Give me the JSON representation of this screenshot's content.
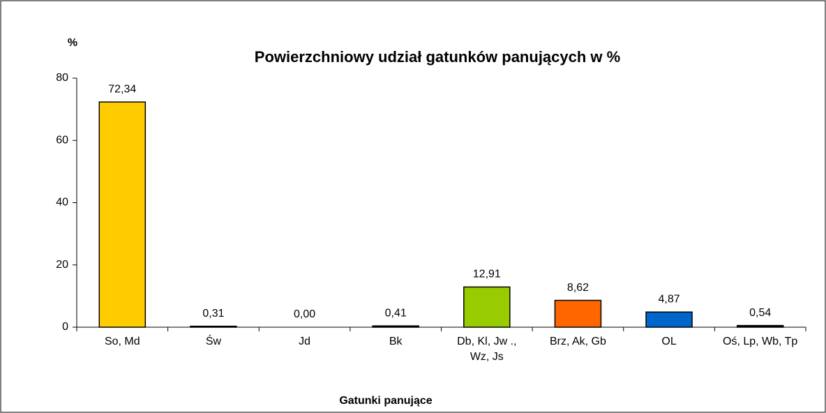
{
  "chart_data": {
    "type": "bar",
    "title": "Powierzchniowy udział gatunków panujących w %",
    "y_label": "%",
    "x_label": "Gatunki panujące",
    "categories": [
      "So, Md",
      "Św",
      "Jd",
      "Bk",
      "Db, Kl, Jw ., Wz, Js",
      "Brz, Ak, Gb",
      "OL",
      "Oś, Lp, Wb, Tp"
    ],
    "values": [
      72.34,
      0.31,
      0,
      0.41,
      12.91,
      8.62,
      4.87,
      0.54
    ],
    "value_labels": [
      "72,34",
      "0,31",
      "0,00",
      "0,41",
      "12,91",
      "8,62",
      "4,87",
      "0,54"
    ],
    "colors": [
      "#ffcc00",
      "#000000",
      "#000000",
      "#000000",
      "#99cc00",
      "#ff6600",
      "#0066cc",
      "#000000"
    ],
    "ylim": [
      0,
      80
    ],
    "yticks": [
      0,
      20,
      40,
      60,
      80
    ],
    "grid": false
  }
}
